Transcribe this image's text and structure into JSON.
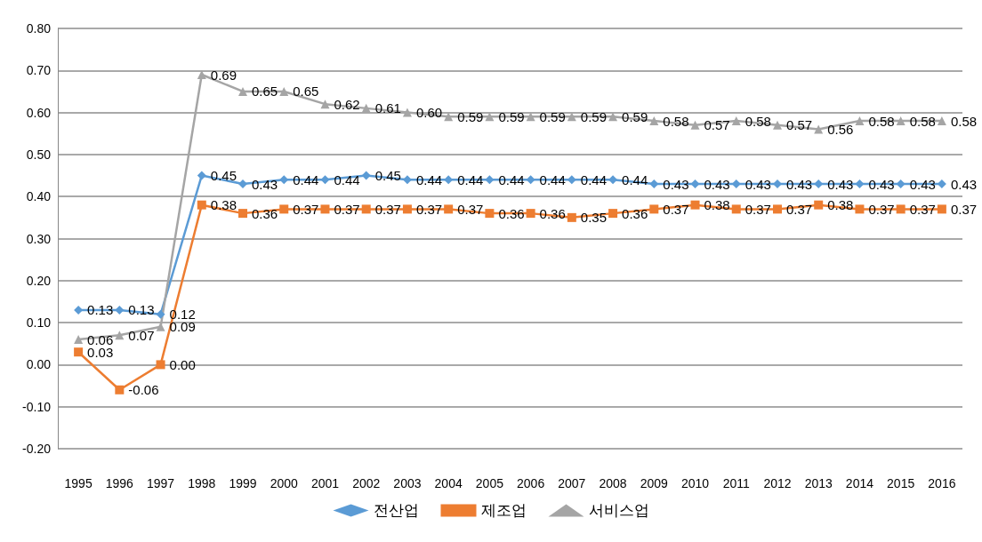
{
  "chart_data": {
    "type": "line",
    "categories": [
      "1995",
      "1996",
      "1997",
      "1998",
      "1999",
      "2000",
      "2001",
      "2002",
      "2003",
      "2004",
      "2005",
      "2006",
      "2007",
      "2008",
      "2009",
      "2010",
      "2011",
      "2012",
      "2013",
      "2014",
      "2015",
      "2016"
    ],
    "series": [
      {
        "name": "전산업",
        "color": "#5b9bd5",
        "marker": "diamond",
        "values": [
          0.13,
          0.13,
          0.12,
          0.45,
          0.43,
          0.44,
          0.44,
          0.45,
          0.44,
          0.44,
          0.44,
          0.44,
          0.44,
          0.44,
          0.43,
          0.43,
          0.43,
          0.43,
          0.43,
          0.43,
          0.43,
          0.43
        ],
        "value_labels": [
          "0.13",
          "0.13",
          "0.12",
          "0.45",
          "0.43",
          "0.44",
          "0.44",
          "0.45",
          "0.44",
          "0.44",
          "0.44",
          "0.44",
          "0.44",
          "0.44",
          "0.43",
          "0.43",
          "0.43",
          "0.43",
          "0.43",
          "0.43",
          "0.43",
          "0.43"
        ]
      },
      {
        "name": "제조업",
        "color": "#ed7d31",
        "marker": "square",
        "values": [
          0.03,
          -0.06,
          0.0,
          0.38,
          0.36,
          0.37,
          0.37,
          0.37,
          0.37,
          0.37,
          0.36,
          0.36,
          0.35,
          0.36,
          0.37,
          0.38,
          0.37,
          0.37,
          0.38,
          0.37,
          0.37,
          0.37
        ],
        "value_labels": [
          "0.03",
          "-0.06",
          "0.00",
          "0.38",
          "0.36",
          "0.37",
          "0.37",
          "0.37",
          "0.37",
          "0.37",
          "0.36",
          "0.36",
          "0.35",
          "0.36",
          "0.37",
          "0.38",
          "0.37",
          "0.37",
          "0.38",
          "0.37",
          "0.37",
          "0.37"
        ]
      },
      {
        "name": "서비스업",
        "color": "#a5a5a5",
        "marker": "triangle",
        "values": [
          0.06,
          0.07,
          0.09,
          0.69,
          0.65,
          0.65,
          0.62,
          0.61,
          0.6,
          0.59,
          0.59,
          0.59,
          0.59,
          0.59,
          0.58,
          0.57,
          0.58,
          0.57,
          0.56,
          0.58,
          0.58,
          0.58
        ],
        "value_labels": [
          "0.06",
          "0.07",
          "0.09",
          "0.69",
          "0.65",
          "0.65",
          "0.62",
          "0.61",
          "0.60",
          "0.59",
          "0.59",
          "0.59",
          "0.59",
          "0.59",
          "0.58",
          "0.57",
          "0.58",
          "0.57",
          "0.56",
          "0.58",
          "0.58",
          "0.58"
        ]
      }
    ],
    "ylim": [
      -0.2,
      0.8
    ],
    "yticks": [
      {
        "value": -0.2,
        "label": "-0.20"
      },
      {
        "value": -0.1,
        "label": "-0.10"
      },
      {
        "value": 0,
        "label": "0.00"
      },
      {
        "value": 0.1,
        "label": "0.10"
      },
      {
        "value": 0.2,
        "label": "0.20"
      },
      {
        "value": 0.3,
        "label": "0.30"
      },
      {
        "value": 0.4,
        "label": "0.40"
      },
      {
        "value": 0.5,
        "label": "0.50"
      },
      {
        "value": 0.6,
        "label": "0.60"
      },
      {
        "value": 0.7,
        "label": "0.70"
      },
      {
        "value": 0.8,
        "label": "0.80"
      }
    ],
    "grid": "y",
    "legend": "bottom",
    "line_style": "solid"
  }
}
